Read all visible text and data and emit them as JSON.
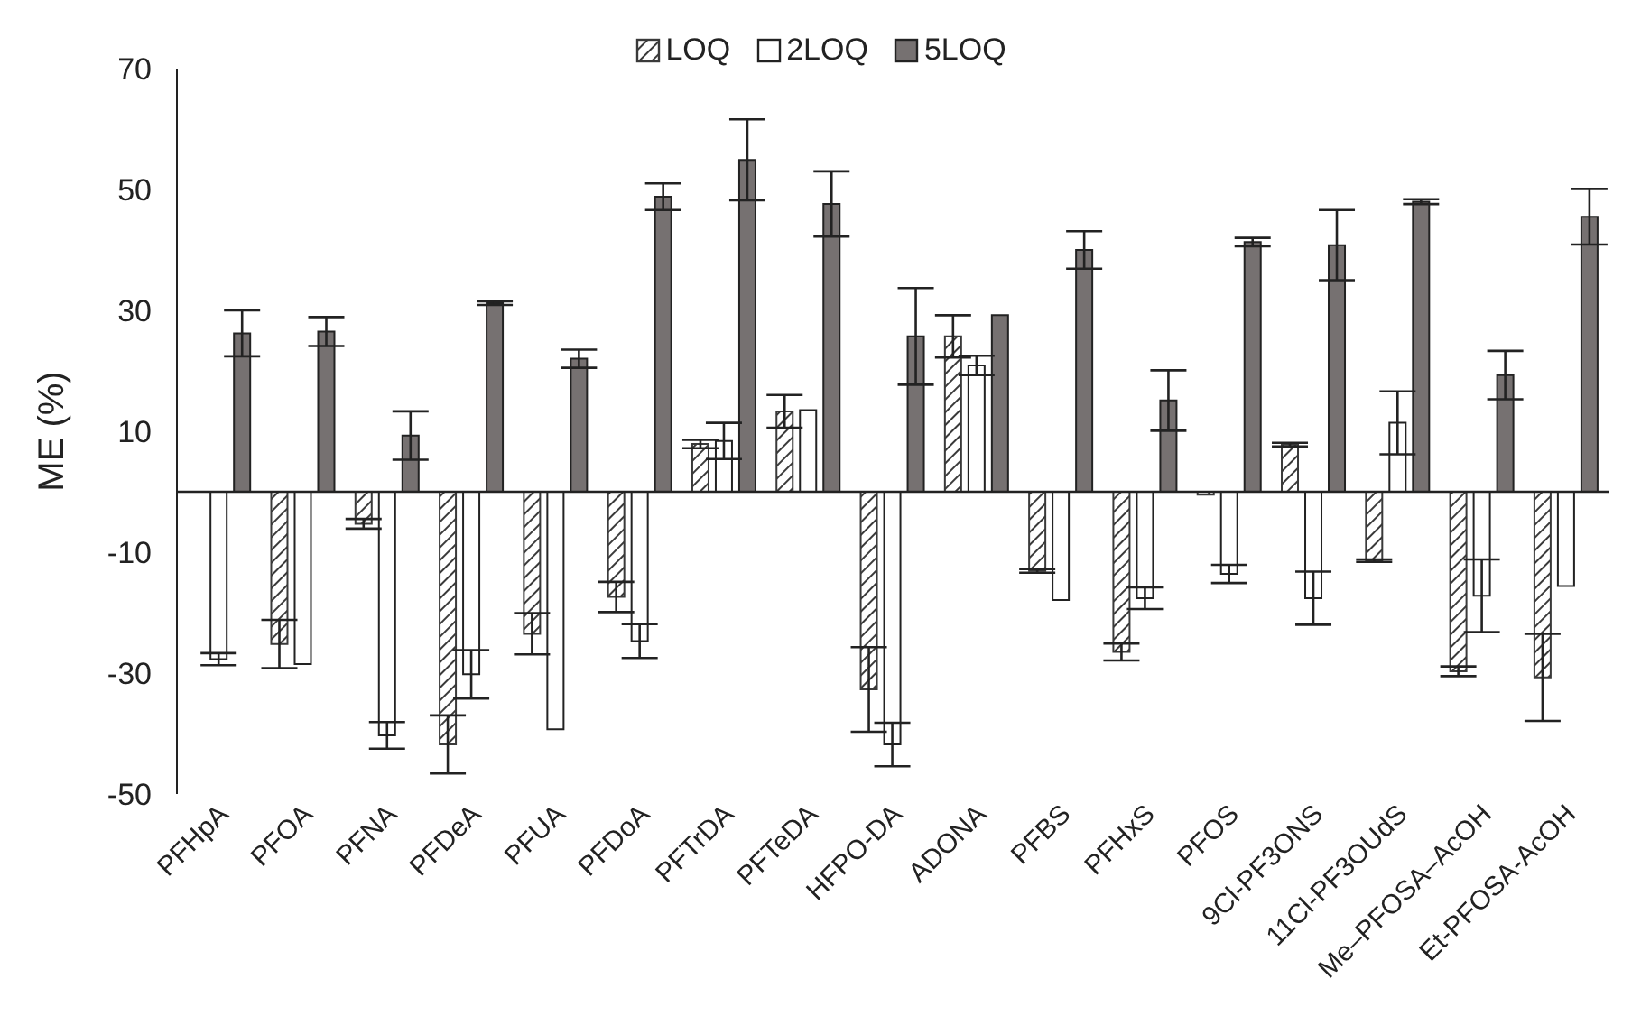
{
  "chart_data": {
    "type": "bar",
    "ylabel": "ME (%)",
    "categories": [
      "PFHpA",
      "PFOA",
      "PFNA",
      "PFDeA",
      "PFUA",
      "PFDoA",
      "PFTrDA",
      "PFTeDA",
      "HFPO-DA",
      "ADONA",
      "PFBS",
      "PFHxS",
      "PFOS",
      "9Cl-PF3ONS",
      "11Cl-PF3OUdS",
      "Me–PFOSA–AcOH",
      "Et-PFOSA-AcOH"
    ],
    "series": [
      {
        "name": "LOQ",
        "color": "#3a3a3a",
        "values": [
          null,
          -25.2,
          -5.3,
          -41.8,
          -23.5,
          -17.4,
          7.9,
          13.3,
          -32.7,
          25.7,
          -13.1,
          -26.5,
          -0.5,
          7.8,
          -11.4,
          -29.7,
          -30.7
        ],
        "errors": [
          null,
          4,
          0.8,
          4.8,
          3.4,
          2.5,
          0.7,
          2.7,
          7,
          3.5,
          0.3,
          1.4,
          null,
          0.3,
          0.2,
          0.8,
          7.2
        ]
      },
      {
        "name": "2LOQ",
        "color": "#ffffff",
        "values": [
          -27.7,
          -28.5,
          -40.3,
          -30.2,
          -39.3,
          -24.7,
          8.4,
          13.5,
          -41.8,
          20.9,
          -17.9,
          -17.6,
          -13.6,
          -17.6,
          11.4,
          -17.2,
          -15.6
        ],
        "errors": [
          1,
          null,
          2.2,
          4,
          null,
          2.8,
          3,
          null,
          3.6,
          1.6,
          null,
          1.8,
          1.5,
          4.4,
          5.2,
          6,
          null
        ]
      },
      {
        "name": "5LOQ",
        "color": "#767171",
        "values": [
          26.2,
          26.5,
          9.3,
          31.2,
          22,
          48.8,
          54.9,
          47.6,
          25.7,
          29.2,
          40,
          15.1,
          41.3,
          40.8,
          48,
          19.3,
          45.5
        ],
        "errors": [
          3.8,
          2.4,
          4,
          0.3,
          1.5,
          2.2,
          6.7,
          5.4,
          8,
          null,
          3.1,
          5,
          0.7,
          5.8,
          0.4,
          4,
          4.6
        ]
      }
    ],
    "ylim": [
      -50,
      70
    ],
    "yticks": [
      -50,
      -30,
      -10,
      10,
      30,
      50,
      70
    ],
    "grid": false,
    "legend": "top"
  }
}
